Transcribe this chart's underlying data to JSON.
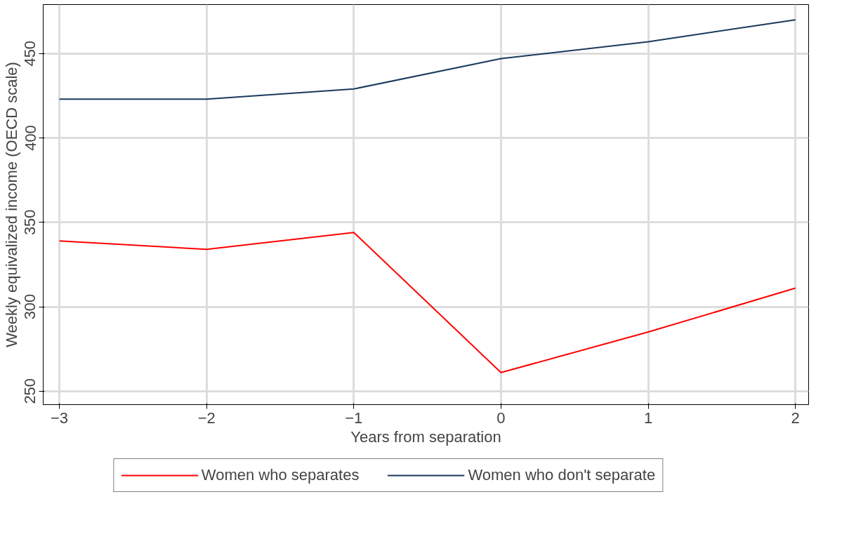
{
  "chart_data": {
    "type": "line",
    "xlabel": "Years from separation",
    "ylabel": "Weekly equivalized income (OECD scale)",
    "x": [
      -3,
      -2,
      -1,
      0,
      1,
      2
    ],
    "series": [
      {
        "name": "Women who separates",
        "color": "#ff0000",
        "values": [
          339,
          334,
          344,
          261,
          285,
          311
        ]
      },
      {
        "name": "Women who don't separate",
        "color": "#1a3a5c",
        "values": [
          423,
          423,
          429,
          447,
          457,
          470
        ]
      }
    ],
    "xlim": [
      -3.11,
      2.09
    ],
    "ylim": [
      242,
      479
    ],
    "xticks": [
      -3,
      -2,
      -1,
      0,
      1,
      2
    ],
    "yticks": [
      250,
      300,
      350,
      400,
      450
    ],
    "grid": true,
    "legend": "bottom",
    "marker": "none",
    "line_style": "solid"
  }
}
